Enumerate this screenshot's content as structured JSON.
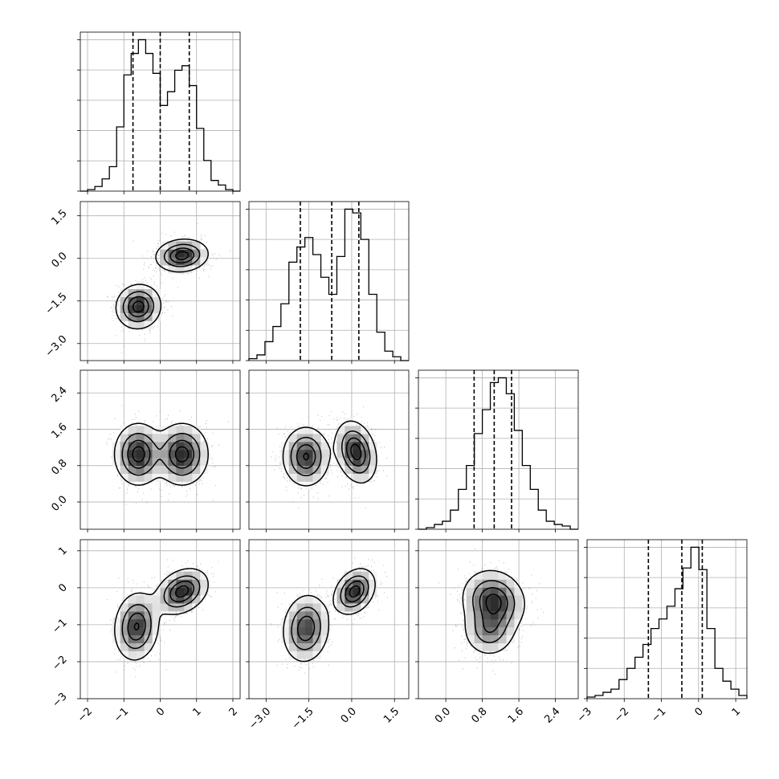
{
  "chart_data": {
    "type": "corner",
    "grid": true,
    "parameters": [
      {
        "ticks": [
          -2,
          -1,
          0,
          1,
          2
        ],
        "tick_labels": [
          "−2",
          "−1",
          "0",
          "1",
          "2"
        ],
        "range": [
          -2.2,
          2.2
        ]
      },
      {
        "ticks": [
          -3.0,
          -1.5,
          0.0,
          1.5
        ],
        "tick_labels": [
          "−3.0",
          "−1.5",
          "0.0",
          "1.5"
        ],
        "range": [
          -3.6,
          2.0
        ]
      },
      {
        "ticks": [
          0.0,
          0.8,
          1.6,
          2.4
        ],
        "tick_labels": [
          "0.0",
          "0.8",
          "1.6",
          "2.4"
        ],
        "range": [
          -0.6,
          2.9
        ]
      },
      {
        "ticks": [
          -3,
          -2,
          -1,
          0,
          1
        ],
        "tick_labels": [
          "−3",
          "−2",
          "−1",
          "0",
          "1"
        ],
        "range": [
          -3.0,
          1.3
        ]
      }
    ],
    "histograms": [
      {
        "quantiles": [
          -0.75,
          0.0,
          0.8
        ],
        "edges": [
          -2.2,
          -2.0,
          -1.8,
          -1.6,
          -1.4,
          -1.2,
          -1.0,
          -0.8,
          -0.6,
          -0.4,
          -0.2,
          0.0,
          0.2,
          0.4,
          0.6,
          0.8,
          1.0,
          1.2,
          1.4,
          1.6,
          1.8,
          2.0,
          2.2
        ],
        "counts": [
          0.0,
          0.01,
          0.03,
          0.08,
          0.16,
          0.42,
          0.76,
          0.9,
          0.99,
          0.9,
          0.77,
          0.56,
          0.65,
          0.79,
          0.82,
          0.69,
          0.41,
          0.2,
          0.07,
          0.04,
          0.01,
          0.0
        ]
      },
      {
        "quantiles": [
          -1.8,
          -0.7,
          0.25
        ],
        "edges": [
          -3.6,
          -3.32,
          -3.04,
          -2.76,
          -2.48,
          -2.2,
          -1.92,
          -1.64,
          -1.36,
          -1.08,
          -0.8,
          -0.52,
          -0.24,
          0.04,
          0.32,
          0.6,
          0.88,
          1.16,
          1.44,
          1.72,
          2.0
        ],
        "counts": [
          0.01,
          0.03,
          0.1,
          0.18,
          0.3,
          0.52,
          0.6,
          0.65,
          0.56,
          0.44,
          0.35,
          0.55,
          0.8,
          0.78,
          0.64,
          0.35,
          0.15,
          0.05,
          0.02,
          0.0
        ]
      },
      {
        "quantiles": [
          0.62,
          1.06,
          1.44
        ],
        "edges": [
          -0.6,
          -0.425,
          -0.25,
          -0.075,
          0.1,
          0.275,
          0.45,
          0.625,
          0.8,
          0.975,
          1.15,
          1.325,
          1.5,
          1.675,
          1.85,
          2.025,
          2.2,
          2.375,
          2.55,
          2.725,
          2.9
        ],
        "counts": [
          0.0,
          0.01,
          0.03,
          0.05,
          0.12,
          0.25,
          0.4,
          0.6,
          0.75,
          0.92,
          0.95,
          0.85,
          0.62,
          0.4,
          0.25,
          0.12,
          0.05,
          0.03,
          0.02,
          0.0
        ]
      },
      {
        "quantiles": [
          -1.35,
          -0.45,
          0.1
        ],
        "edges": [
          -3.0,
          -2.785,
          -2.57,
          -2.355,
          -2.14,
          -1.925,
          -1.71,
          -1.495,
          -1.28,
          -1.065,
          -0.85,
          -0.635,
          -0.42,
          -0.205,
          0.01,
          0.225,
          0.44,
          0.655,
          0.87,
          1.085,
          1.3
        ],
        "counts": [
          0.01,
          0.02,
          0.04,
          0.06,
          0.12,
          0.19,
          0.26,
          0.34,
          0.44,
          0.5,
          0.58,
          0.69,
          0.82,
          0.95,
          0.81,
          0.44,
          0.19,
          0.11,
          0.06,
          0.02
        ]
      }
    ],
    "scatter_panels": [
      {
        "row": 1,
        "col": 0,
        "modes": [
          {
            "mu": [
              0.6,
              0.1
            ],
            "sd": [
              0.35,
              0.28
            ],
            "rho": 0.1,
            "w": 1.0
          },
          {
            "mu": [
              -0.6,
              -1.7
            ],
            "sd": [
              0.3,
              0.38
            ],
            "rho": 0.05,
            "w": 1.0
          }
        ]
      },
      {
        "row": 2,
        "col": 0,
        "modes": [
          {
            "mu": [
              -0.6,
              1.05
            ],
            "sd": [
              0.32,
              0.33
            ],
            "rho": 0.0,
            "w": 1.0
          },
          {
            "mu": [
              0.6,
              1.05
            ],
            "sd": [
              0.35,
              0.33
            ],
            "rho": 0.0,
            "w": 1.0
          }
        ]
      },
      {
        "row": 2,
        "col": 1,
        "modes": [
          {
            "mu": [
              0.15,
              1.1
            ],
            "sd": [
              0.35,
              0.33
            ],
            "rho": -0.25,
            "w": 1.0
          },
          {
            "mu": [
              -1.6,
              1.0
            ],
            "sd": [
              0.4,
              0.32
            ],
            "rho": 0.0,
            "w": 0.9
          }
        ]
      },
      {
        "row": 3,
        "col": 0,
        "modes": [
          {
            "mu": [
              0.6,
              -0.1
            ],
            "sd": [
              0.35,
              0.3
            ],
            "rho": 0.3,
            "w": 1.0
          },
          {
            "mu": [
              -0.65,
              -1.05
            ],
            "sd": [
              0.3,
              0.45
            ],
            "rho": 0.1,
            "w": 0.9
          }
        ]
      },
      {
        "row": 3,
        "col": 1,
        "modes": [
          {
            "mu": [
              0.1,
              -0.1
            ],
            "sd": [
              0.35,
              0.3
            ],
            "rho": 0.3,
            "w": 1.0
          },
          {
            "mu": [
              -1.6,
              -1.1
            ],
            "sd": [
              0.4,
              0.45
            ],
            "rho": 0.1,
            "w": 0.85
          }
        ]
      },
      {
        "row": 3,
        "col": 2,
        "modes": [
          {
            "mu": [
              1.05,
              -0.35
            ],
            "sd": [
              0.33,
              0.4
            ],
            "rho": -0.1,
            "w": 1.0
          },
          {
            "mu": [
              0.95,
              -1.15
            ],
            "sd": [
              0.28,
              0.35
            ],
            "rho": 0.0,
            "w": 0.6
          }
        ]
      }
    ],
    "contour_levels": [
      0.12,
      0.38,
      0.65,
      0.88
    ],
    "colors": {
      "line": "#000000",
      "grid": "#b0b0b0",
      "frame": "#000000",
      "dots": "#777777",
      "background": "#ffffff"
    }
  }
}
